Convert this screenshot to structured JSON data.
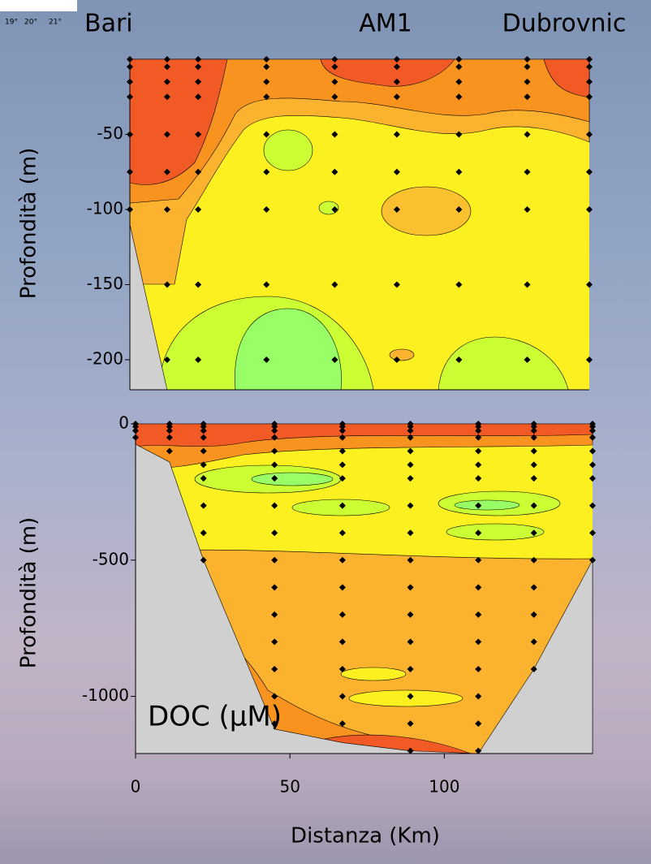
{
  "inset_labels": [
    "19°",
    "20°",
    "21°"
  ],
  "header": {
    "left": "Bari",
    "middle": "AM1",
    "right": "Dubrovnic"
  },
  "chart_data": [
    {
      "type": "contour",
      "ylabel": "Profondità (m)",
      "xlim": [
        0,
        148
      ],
      "ylim": [
        -220,
        0
      ],
      "yticks": [
        -50,
        -100,
        -150,
        -200
      ],
      "stations": [
        0,
        12,
        22,
        44,
        66,
        86,
        106,
        128,
        148
      ],
      "depths": [
        0,
        -5,
        -15,
        -25,
        -50,
        -75,
        -100,
        -150,
        -200
      ],
      "bottom": [
        -110,
        -220,
        -220,
        -220,
        -220,
        -220,
        -220,
        -220,
        -220
      ],
      "seafloor_color": "#d0d0d0"
    },
    {
      "type": "contour",
      "ylabel": "Profondità (m)",
      "xlabel": "Distanza (Km)",
      "annotation": "DOC (μM)",
      "xlim": [
        0,
        148
      ],
      "ylim": [
        -1210,
        0
      ],
      "yticks": [
        0,
        -500,
        -1000
      ],
      "xticks": [
        0,
        50,
        100
      ],
      "stations": [
        0,
        11,
        22,
        45,
        67,
        89,
        111,
        129,
        148
      ],
      "depths": [
        0,
        -10,
        -25,
        -50,
        -100,
        -150,
        -200,
        -300,
        -400,
        -500,
        -600,
        -700,
        -800,
        -900,
        -1000,
        -1100,
        -1200
      ],
      "bottom": [
        -75,
        -140,
        -500,
        -1120,
        -1170,
        -1200,
        -1210,
        -900,
        -500
      ],
      "seafloor_color": "#d0d0d0"
    }
  ]
}
